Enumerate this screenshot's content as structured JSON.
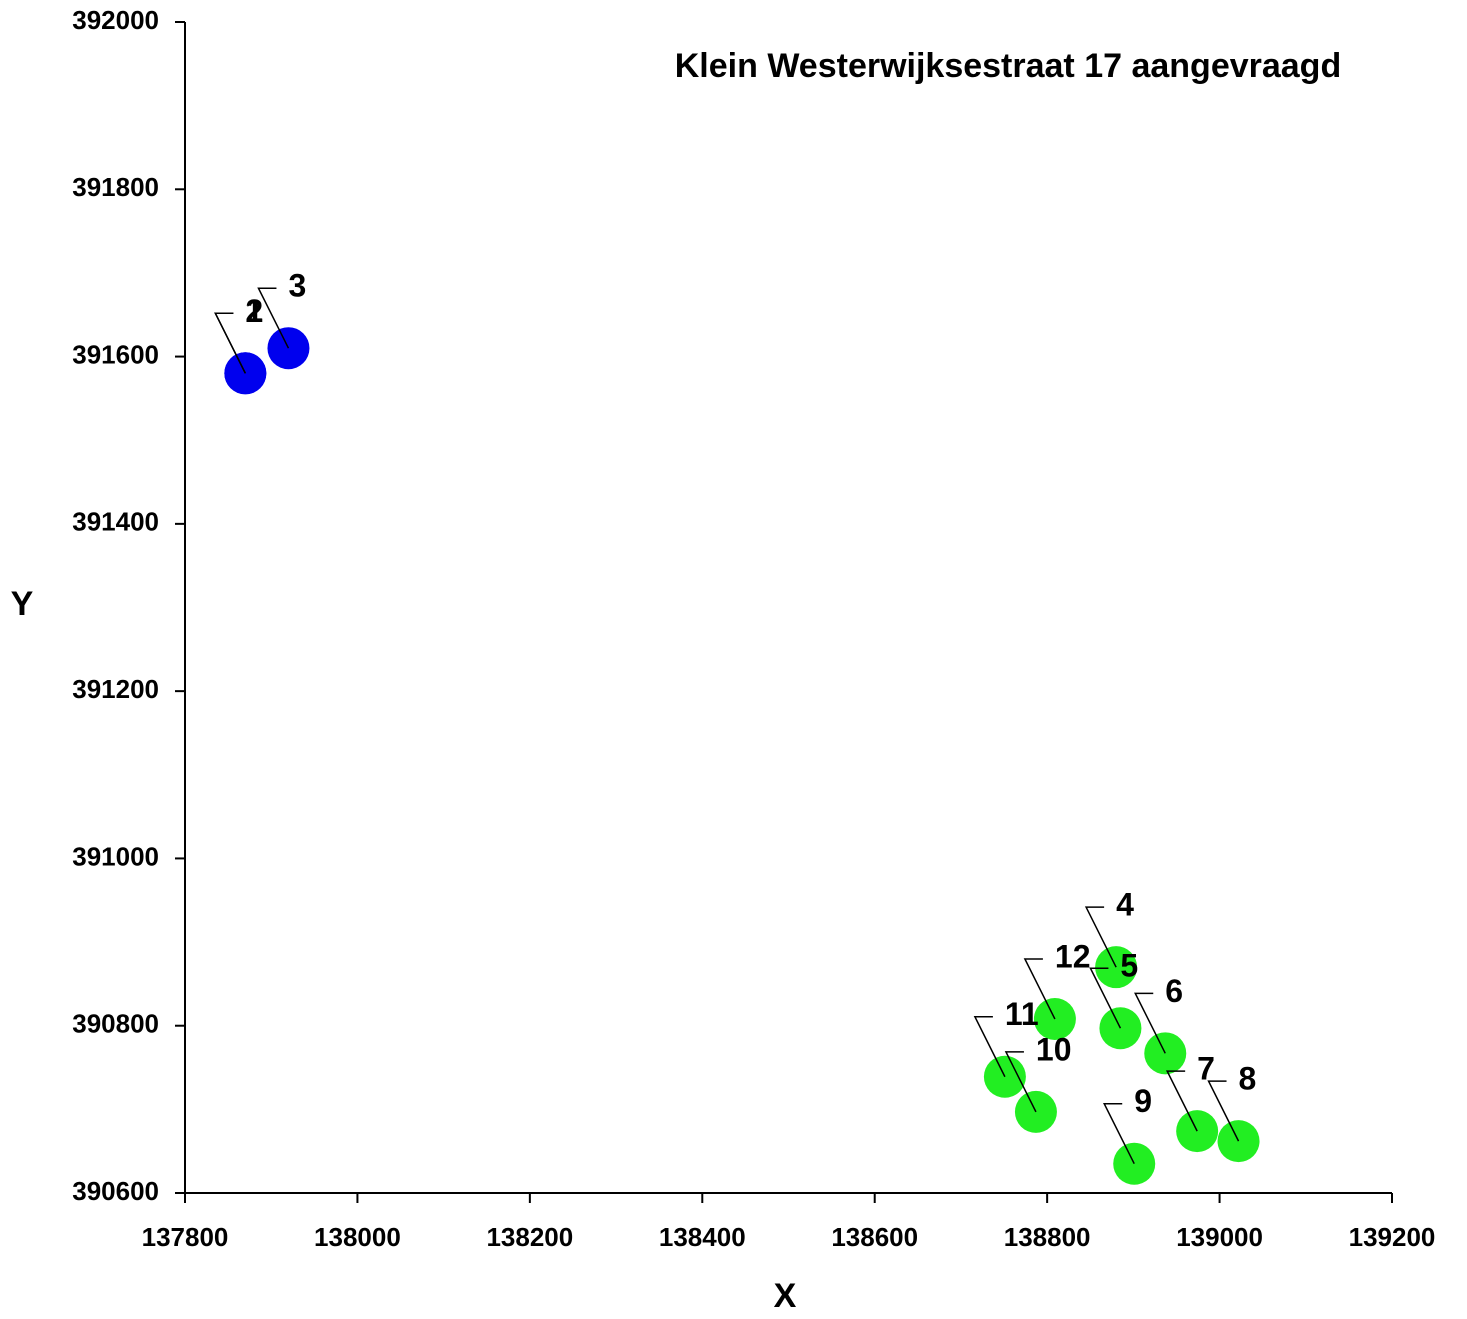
{
  "chart_data": {
    "type": "scatter",
    "title": "Klein Westerwijksestraat 17 aangevraagd",
    "x_label": "X",
    "y_label": "Y",
    "series": [
      {
        "color": "#0000ee",
        "labels": [
          "1",
          "2",
          "3"
        ],
        "x": [
          137870,
          137870,
          137920
        ],
        "values": [
          391580,
          391580,
          391610
        ]
      },
      {
        "color": "#22ee22",
        "labels": [
          "4",
          "5",
          "6",
          "7",
          "8",
          "9",
          "10",
          "11",
          "12"
        ],
        "x": [
          138880,
          138885,
          138937,
          138974,
          139022,
          138901,
          138787,
          138751,
          138809
        ],
        "values": [
          390870,
          390797,
          390767,
          390674,
          390662,
          390635,
          390697,
          390739,
          390808
        ]
      }
    ],
    "xlim": [
      137800,
      139200
    ],
    "xticks": [
      137800,
      138000,
      138200,
      138400,
      138600,
      138800,
      139000,
      139200
    ],
    "ylim": [
      390600,
      392000
    ],
    "yticks": [
      390600,
      390800,
      391000,
      391200,
      391400,
      391600,
      391800,
      392000
    ],
    "grid": false
  }
}
